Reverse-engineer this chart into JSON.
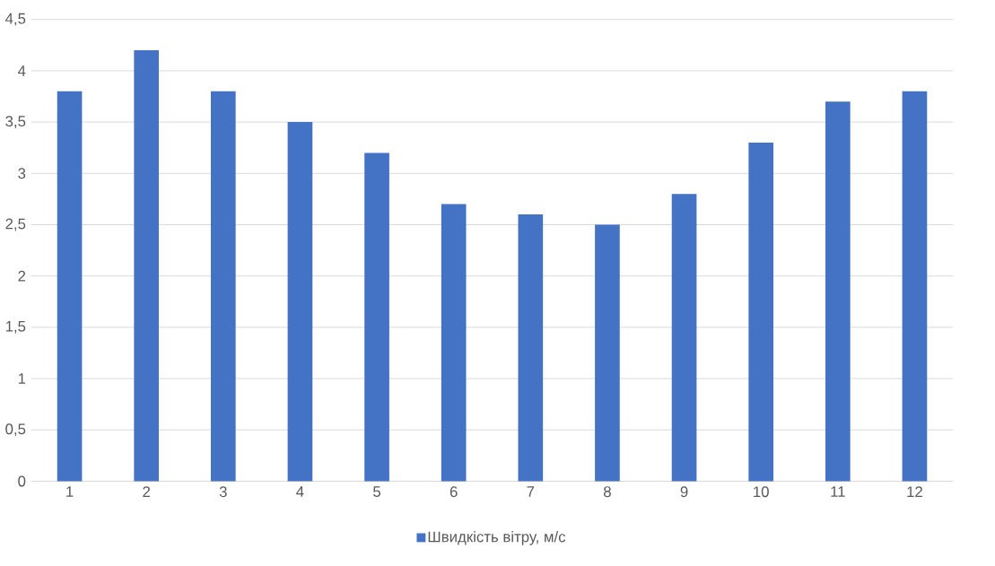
{
  "chart_data": {
    "type": "bar",
    "categories": [
      "1",
      "2",
      "3",
      "4",
      "5",
      "6",
      "7",
      "8",
      "9",
      "10",
      "11",
      "12"
    ],
    "series": [
      {
        "name": "Швидкість вітру, м/с",
        "color": "#4472c4",
        "values": [
          3.8,
          4.2,
          3.8,
          3.5,
          3.2,
          2.7,
          2.6,
          2.5,
          2.8,
          3.3,
          3.7,
          3.8
        ]
      }
    ],
    "ylim": [
      0,
      4.5
    ],
    "yticks": [
      0,
      {
        "value": 0.5,
        "label": "0,5"
      },
      1,
      {
        "value": 1.5,
        "label": "1,5"
      },
      2,
      {
        "value": 2.5,
        "label": "2,5"
      },
      3,
      {
        "value": 3.5,
        "label": "3,5"
      },
      4,
      {
        "value": 4.5,
        "label": "4,5"
      }
    ],
    "grid": "y",
    "legend": "bottom"
  }
}
